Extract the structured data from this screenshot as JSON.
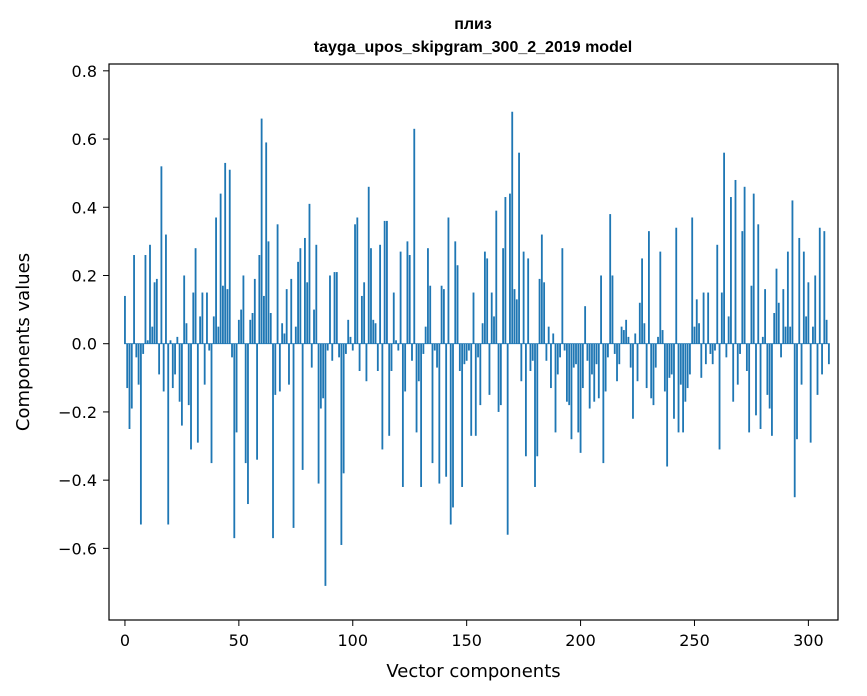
{
  "chart_data": {
    "type": "bar",
    "title": [
      "плиз",
      "tayga_upos_skipgram_300_2_2019 model"
    ],
    "xlabel": "Vector components",
    "ylabel": "Components values",
    "xlim": [
      -7,
      313
    ],
    "ylim": [
      -0.81,
      0.82
    ],
    "xticks": [
      0,
      50,
      100,
      150,
      200,
      250,
      300
    ],
    "yticks": [
      -0.6,
      -0.4,
      -0.2,
      0.0,
      0.2,
      0.4,
      0.6,
      0.8
    ],
    "ytick_labels": [
      "−0.6",
      "−0.4",
      "−0.2",
      "0.0",
      "0.2",
      "0.4",
      "0.6",
      "0.8"
    ],
    "grid": false,
    "bar_color": "#1f77b4",
    "values": [
      0.14,
      -0.13,
      -0.25,
      -0.19,
      0.26,
      -0.04,
      -0.12,
      -0.53,
      -0.03,
      0.26,
      0.01,
      0.29,
      0.05,
      0.18,
      0.19,
      -0.09,
      0.52,
      -0.14,
      0.32,
      -0.53,
      0.01,
      -0.13,
      -0.09,
      0.02,
      -0.17,
      -0.24,
      0.2,
      0.06,
      -0.18,
      -0.31,
      0.15,
      0.28,
      -0.29,
      0.08,
      0.15,
      -0.12,
      0.15,
      -0.02,
      -0.35,
      0.08,
      0.37,
      0.05,
      0.44,
      0.17,
      0.53,
      0.16,
      0.51,
      -0.04,
      -0.57,
      -0.26,
      0.07,
      0.1,
      0.2,
      -0.35,
      -0.47,
      0.07,
      0.09,
      0.19,
      -0.34,
      0.26,
      0.66,
      0.14,
      0.59,
      0.3,
      0.09,
      -0.57,
      -0.15,
      0.35,
      -0.14,
      0.06,
      0.03,
      0.16,
      -0.12,
      0.19,
      -0.54,
      0.05,
      0.24,
      0.28,
      -0.37,
      0.31,
      0.18,
      0.41,
      -0.07,
      0.1,
      0.29,
      -0.41,
      -0.19,
      -0.16,
      -0.71,
      -0.02,
      0.2,
      -0.05,
      0.21,
      0.21,
      -0.04,
      -0.59,
      -0.38,
      -0.03,
      0.07,
      0.02,
      -0.02,
      0.35,
      0.37,
      -0.08,
      0.14,
      0.18,
      -0.11,
      0.46,
      0.28,
      0.07,
      0.06,
      -0.08,
      0.29,
      -0.31,
      0.36,
      0.36,
      -0.27,
      -0.08,
      0.15,
      0.01,
      -0.02,
      0.27,
      -0.42,
      -0.14,
      0.3,
      0.26,
      -0.05,
      0.63,
      -0.26,
      -0.11,
      -0.42,
      -0.03,
      0.05,
      0.28,
      0.17,
      -0.35,
      -0.02,
      -0.07,
      -0.41,
      0.17,
      0.16,
      -0.39,
      0.37,
      -0.53,
      -0.48,
      0.3,
      0.23,
      -0.08,
      -0.42,
      -0.06,
      -0.05,
      -0.02,
      -0.27,
      0.15,
      -0.27,
      -0.04,
      -0.18,
      0.06,
      0.27,
      0.25,
      -0.15,
      0.15,
      0.08,
      0.39,
      -0.2,
      -0.18,
      0.28,
      0.43,
      -0.56,
      0.44,
      0.68,
      0.16,
      0.13,
      0.56,
      -0.11,
      0.27,
      -0.33,
      0.25,
      -0.08,
      -0.05,
      -0.42,
      -0.33,
      0.19,
      0.32,
      0.18,
      -0.05,
      0.05,
      -0.13,
      0.03,
      -0.26,
      -0.09,
      -0.04,
      0.28,
      -0.02,
      -0.17,
      -0.18,
      -0.28,
      -0.07,
      -0.06,
      -0.26,
      -0.32,
      -0.13,
      0.11,
      -0.05,
      -0.19,
      -0.09,
      -0.17,
      -0.06,
      -0.16,
      0.2,
      -0.35,
      -0.14,
      -0.04,
      0.38,
      0.2,
      -0.03,
      -0.11,
      -0.06,
      0.05,
      0.04,
      0.07,
      0.02,
      -0.07,
      -0.22,
      0.03,
      -0.11,
      0.12,
      0.25,
      0.06,
      -0.13,
      0.33,
      -0.16,
      -0.18,
      -0.07,
      0.02,
      0.27,
      0.04,
      -0.14,
      -0.36,
      -0.1,
      -0.09,
      -0.22,
      0.34,
      -0.26,
      -0.12,
      -0.26,
      -0.17,
      -0.13,
      -0.09,
      0.37,
      0.05,
      0.13,
      0.06,
      -0.1,
      0.15,
      -0.06,
      0.15,
      -0.03,
      -0.06,
      -0.02,
      0.29,
      -0.31,
      0.15,
      0.56,
      -0.04,
      0.08,
      0.43,
      -0.17,
      0.48,
      -0.12,
      -0.03,
      0.33,
      0.46,
      -0.08,
      -0.26,
      0.17,
      0.44,
      -0.21,
      0.35,
      -0.25,
      0.02,
      0.16,
      -0.15,
      -0.19,
      -0.27,
      0.09,
      0.22,
      0.12,
      -0.04,
      0.16,
      0.05,
      0.27,
      0.05,
      0.42,
      -0.45,
      -0.28,
      0.31,
      -0.12,
      0.27,
      0.08,
      0.18,
      -0.29,
      0.05,
      0.2,
      -0.15,
      0.34,
      -0.09,
      0.33,
      0.07,
      -0.06
    ]
  }
}
